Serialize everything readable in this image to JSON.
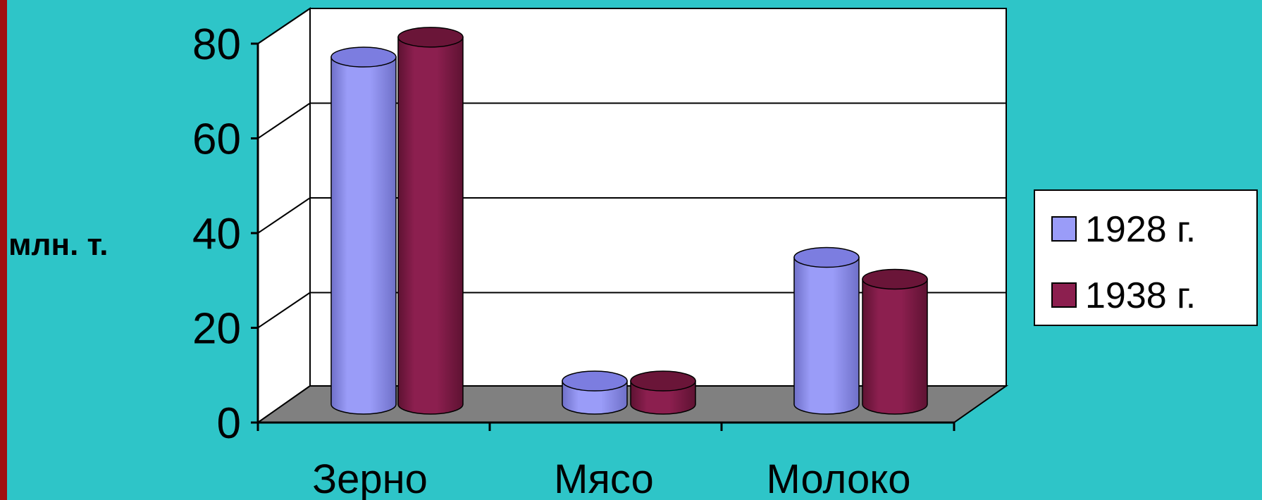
{
  "colors": {
    "background": "#2ec5c8",
    "left_border": "#a01010",
    "wall": "#ffffff",
    "floor": "#808080",
    "series_1928": "#9a9cf8",
    "series_1938": "#8c1f4f"
  },
  "chart_data": {
    "type": "bar",
    "style": "3d-cylinder",
    "categories": [
      "Зерно",
      "Мясо",
      "Молоко"
    ],
    "series": [
      {
        "name": "1928 г.",
        "values": [
          73.3,
          4.9,
          31.0
        ]
      },
      {
        "name": "1938 г.",
        "values": [
          77.5,
          4.9,
          26.4
        ]
      }
    ],
    "ylabel": "млн. т.",
    "ylim": [
      0,
      80
    ],
    "yticks": [
      "0",
      "20",
      "40",
      "60",
      "80"
    ],
    "grid": true,
    "legend": "right"
  }
}
